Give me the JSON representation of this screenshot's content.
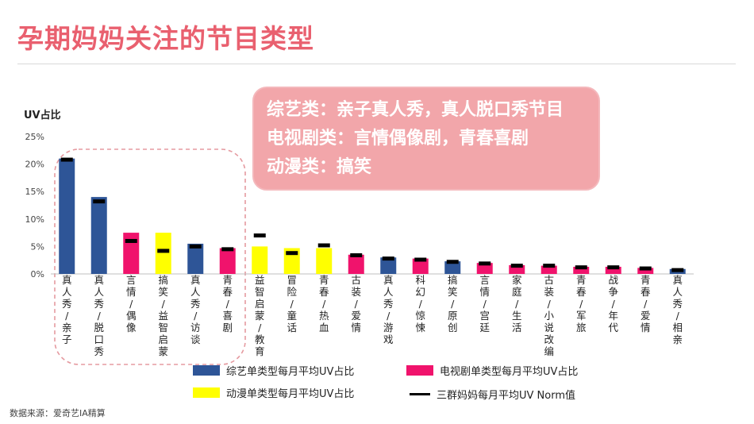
{
  "title": "孕期妈妈关注的节目类型",
  "y_axis_label": "UV占比",
  "callout": {
    "lines": [
      "综艺类：亲子真人秀，真人脱口秀节目",
      "电视剧类：言情偶像剧，青春喜剧",
      "动漫类：搞笑"
    ]
  },
  "source": "数据来源：爱奇艺IA精算",
  "colors": {
    "variety": "#2e5597",
    "tv": "#f0136c",
    "anime": "#ffff00",
    "norm": "#000000",
    "highlight_border": "#e59aa0",
    "title": "#e9606f",
    "callout_bg": "#f2a6aa"
  },
  "legend": [
    {
      "key": "variety",
      "label": "综艺单类型每月平均UV占比"
    },
    {
      "key": "tv",
      "label": "电视剧单类型每月平均UV占比"
    },
    {
      "key": "anime",
      "label": "动漫单类型每月平均UV占比"
    },
    {
      "key": "norm",
      "label": "三群妈妈每月平均UV Norm值"
    }
  ],
  "chart_data": {
    "type": "bar",
    "ylabel": "UV占比",
    "ylim": [
      0,
      25
    ],
    "y_ticks": [
      "0%",
      "5%",
      "10%",
      "15%",
      "20%",
      "25%"
    ],
    "grid": false,
    "legend_position": "bottom",
    "categories": [
      "真人秀/亲子",
      "真人秀/脱口秀",
      "言情/偶像",
      "搞笑/益智启蒙",
      "真人秀/访谈",
      "青春/喜剧",
      "益智启蒙/教育",
      "冒险/童话",
      "青春/热血",
      "古装/爱情",
      "真人秀/游戏",
      "科幻/惊悚",
      "搞笑/原创",
      "言情/宫廷",
      "家庭/生活",
      "古装/小说改编",
      "青春/军旅",
      "战争/年代",
      "青春/爱情",
      "真人秀/相亲"
    ],
    "category_type": [
      "variety",
      "variety",
      "tv",
      "anime",
      "variety",
      "tv",
      "anime",
      "anime",
      "anime",
      "tv",
      "variety",
      "tv",
      "variety",
      "tv",
      "tv",
      "tv",
      "tv",
      "tv",
      "tv",
      "variety"
    ],
    "series": [
      {
        "name": "UV占比",
        "values": [
          21.0,
          14.0,
          7.5,
          7.5,
          5.5,
          4.7,
          5.0,
          4.7,
          4.7,
          3.5,
          3.0,
          2.8,
          2.3,
          2.0,
          1.6,
          1.5,
          1.3,
          1.3,
          1.1,
          0.9
        ]
      },
      {
        "name": "三群妈妈每月平均UV Norm值",
        "values": [
          20.8,
          13.2,
          6.0,
          4.2,
          5.0,
          4.5,
          7.0,
          3.8,
          5.2,
          3.4,
          2.8,
          2.6,
          2.2,
          1.9,
          1.5,
          1.5,
          1.2,
          1.2,
          1.0,
          0.7
        ]
      }
    ]
  }
}
